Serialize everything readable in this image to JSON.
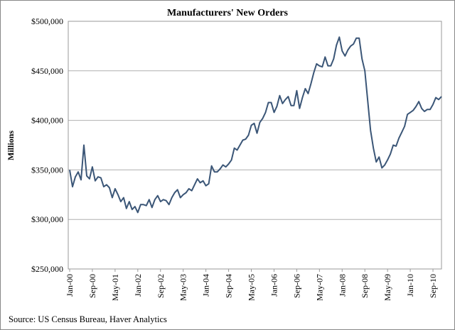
{
  "chart_data": {
    "type": "line",
    "title": "Manufacturers' New Orders",
    "ylabel": "Millions",
    "xlabel": "",
    "source": "Source:  US Census Bureau, Haver Analytics",
    "ylim": [
      250000,
      500000
    ],
    "yticks": [
      250000,
      300000,
      350000,
      400000,
      450000,
      500000
    ],
    "ytick_labels": [
      "$250,000",
      "$300,000",
      "$350,000",
      "$400,000",
      "$450,000",
      "$500,000"
    ],
    "grid": true,
    "x_start": "Jan-00",
    "x_frequency": "monthly",
    "xtick_labels": [
      "Jan-00",
      "Sep-00",
      "May-01",
      "Jan-02",
      "Sep-02",
      "May-03",
      "Jan-04",
      "Sep-04",
      "May-05",
      "Jan-06",
      "Sep-06",
      "May-07",
      "Jan-08",
      "Sep-08",
      "May-09",
      "Jan-10",
      "Sep-10"
    ],
    "xtick_every_months": 8,
    "line_color": "#3b5677",
    "series": [
      {
        "name": "Manufacturers' New Orders",
        "values": [
          350,
          333,
          343,
          348,
          340,
          375,
          344,
          341,
          353,
          339,
          343,
          342,
          333,
          335,
          332,
          322,
          331,
          325,
          318,
          322,
          311,
          318,
          310,
          313,
          307,
          315,
          315,
          314,
          320,
          312,
          320,
          324,
          318,
          320,
          319,
          315,
          322,
          327,
          330,
          322,
          325,
          327,
          331,
          329,
          335,
          341,
          337,
          339,
          334,
          336,
          354,
          348,
          348,
          351,
          355,
          353,
          356,
          360,
          372,
          370,
          375,
          380,
          381,
          385,
          395,
          397,
          387,
          398,
          402,
          408,
          418,
          418,
          408,
          414,
          425,
          417,
          421,
          424,
          415,
          415,
          430,
          412,
          423,
          432,
          427,
          437,
          448,
          457,
          455,
          454,
          464,
          455,
          455,
          462,
          476,
          484,
          470,
          465,
          471,
          475,
          477,
          483,
          483,
          462,
          450,
          420,
          390,
          372,
          358,
          363,
          352,
          355,
          360,
          366,
          375,
          374,
          382,
          388,
          394,
          406,
          408,
          410,
          414,
          419,
          412,
          409,
          411,
          411,
          416,
          423,
          421,
          424
        ],
        "unit_multiplier": 1000
      }
    ]
  }
}
